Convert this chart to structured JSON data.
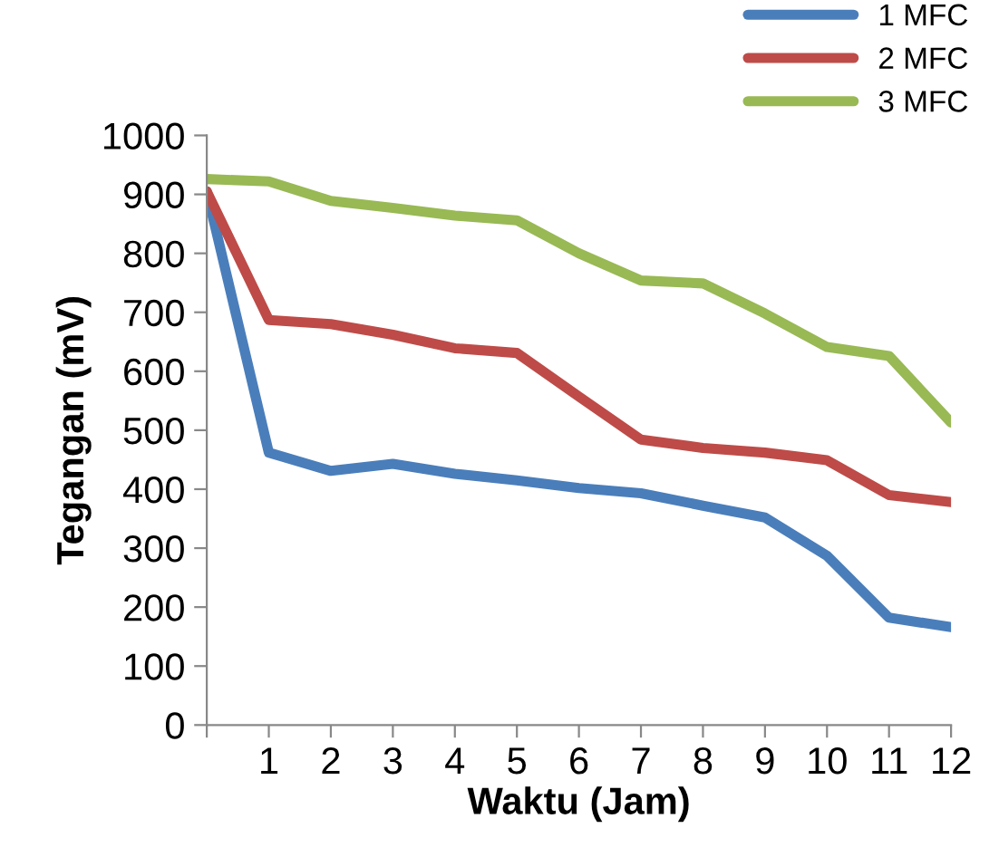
{
  "chart_data": {
    "type": "line",
    "xlabel": "Waktu (Jam)",
    "ylabel": "Tegangan (mV)",
    "x": [
      0,
      1,
      2,
      3,
      4,
      5,
      6,
      7,
      8,
      9,
      10,
      11,
      12
    ],
    "series": [
      {
        "name": "1 MFC",
        "color": "#4a7ebb",
        "values": [
          905,
          462,
          431,
          443,
          426,
          415,
          402,
          393,
          372,
          352,
          287,
          182,
          166
        ]
      },
      {
        "name": "2 MFC",
        "color": "#be4b48",
        "values": [
          905,
          687,
          680,
          662,
          639,
          631,
          557,
          484,
          470,
          462,
          449,
          390,
          378
        ]
      },
      {
        "name": "3 MFC",
        "color": "#98b954",
        "values": [
          926,
          922,
          889,
          877,
          864,
          856,
          800,
          754,
          749,
          698,
          641,
          626,
          513
        ]
      }
    ],
    "xlim": [
      0,
      12
    ],
    "xticks": [
      {
        "value": 0,
        "label": null
      },
      1,
      2,
      3,
      4,
      5,
      6,
      7,
      8,
      9,
      10,
      11,
      12
    ],
    "ylim": [
      0,
      1000
    ],
    "yticks": [
      0,
      100,
      200,
      300,
      400,
      500,
      600,
      700,
      800,
      900,
      1000
    ],
    "grid": false,
    "legend": "top right",
    "marker": "none",
    "line_style": "solid"
  }
}
